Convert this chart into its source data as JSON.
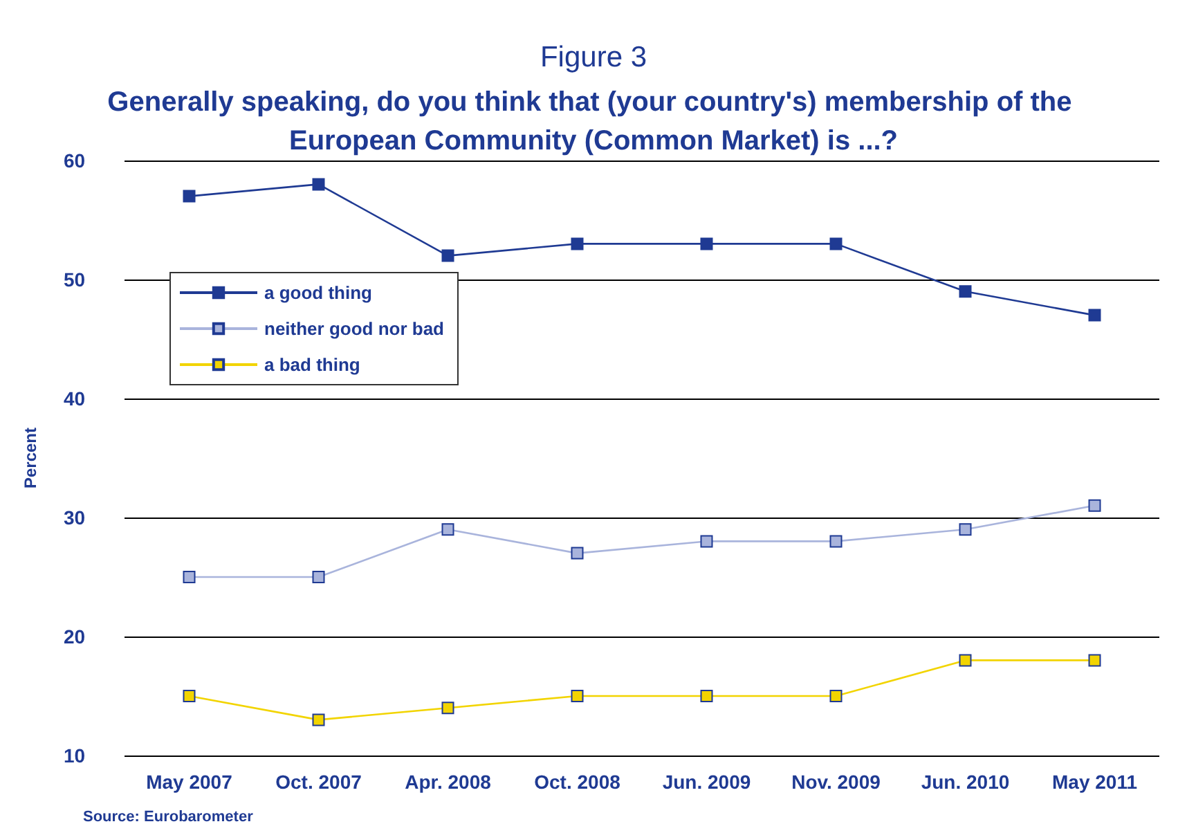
{
  "chart_data": {
    "type": "line",
    "title": "Figure 3",
    "subtitle": "Generally speaking, do you think that (your country's) membership of the European Community (Common Market) is ...?",
    "ylabel": "Percent",
    "categories": [
      "May 2007",
      "Oct. 2007",
      "Apr. 2008",
      "Oct. 2008",
      "Jun. 2009",
      "Nov. 2009",
      "Jun. 2010",
      "May 2011"
    ],
    "series": [
      {
        "name": "a good thing",
        "color": "#1f3a93",
        "values": [
          57,
          58,
          52,
          53,
          53,
          53,
          49,
          47
        ]
      },
      {
        "name": "neither good nor bad",
        "color": "#a9b4dc",
        "values": [
          25,
          25,
          29,
          27,
          28,
          28,
          29,
          31
        ]
      },
      {
        "name": "a bad thing",
        "color": "#f2d400",
        "values": [
          15,
          13,
          14,
          15,
          15,
          15,
          18,
          18
        ]
      }
    ],
    "ylim": [
      10,
      60
    ],
    "yticks": [
      10,
      20,
      30,
      40,
      50,
      60
    ],
    "grid": "y",
    "legend": "top left",
    "marker": "square",
    "line_style": "solid",
    "annotations": [
      "Source: Eurobarometer"
    ]
  }
}
